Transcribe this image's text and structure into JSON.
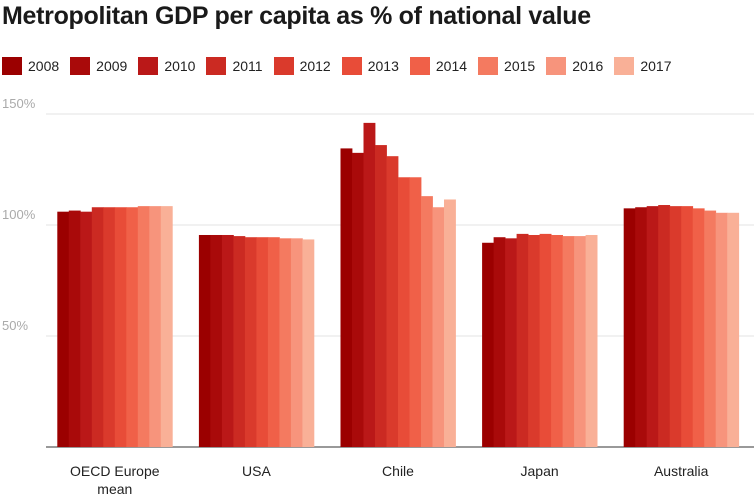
{
  "chart_data": {
    "type": "bar",
    "title": "Metropolitan GDP per capita as % of national value",
    "categories": [
      [
        "OECD Europe",
        "mean"
      ],
      [
        "USA"
      ],
      [
        "Chile"
      ],
      [
        "Japan"
      ],
      [
        "Australia"
      ]
    ],
    "series": [
      {
        "name": "2008",
        "color": "#9b0000",
        "values": [
          106,
          95.5,
          134.5,
          92,
          107.5
        ]
      },
      {
        "name": "2009",
        "color": "#a90a0a",
        "values": [
          106.5,
          95.5,
          132.5,
          94.5,
          108
        ]
      },
      {
        "name": "2010",
        "color": "#ba1818",
        "values": [
          106,
          95.5,
          146,
          94,
          108.5
        ]
      },
      {
        "name": "2011",
        "color": "#cb2a22",
        "values": [
          108,
          95,
          136,
          96,
          109
        ]
      },
      {
        "name": "2012",
        "color": "#da3a2c",
        "values": [
          108,
          94.5,
          131,
          95.5,
          108.5
        ]
      },
      {
        "name": "2013",
        "color": "#e84c38",
        "values": [
          108,
          94.5,
          121.5,
          96,
          108.5
        ]
      },
      {
        "name": "2014",
        "color": "#f06048",
        "values": [
          108,
          94.5,
          121.5,
          95.5,
          107.5
        ]
      },
      {
        "name": "2015",
        "color": "#f47a60",
        "values": [
          108.5,
          94,
          113,
          95,
          106.5
        ]
      },
      {
        "name": "2016",
        "color": "#f7947c",
        "values": [
          108.5,
          94,
          108,
          95,
          105.5
        ]
      },
      {
        "name": "2017",
        "color": "#f9b097",
        "values": [
          108.5,
          93.5,
          111.5,
          95.5,
          105.5
        ]
      }
    ],
    "yticks": [
      {
        "value": 50,
        "label": "50%"
      },
      {
        "value": 100,
        "label": "100%"
      },
      {
        "value": 150,
        "label": "150%"
      }
    ],
    "ylim": [
      0,
      150
    ],
    "grid": true,
    "legend_position": "top"
  }
}
